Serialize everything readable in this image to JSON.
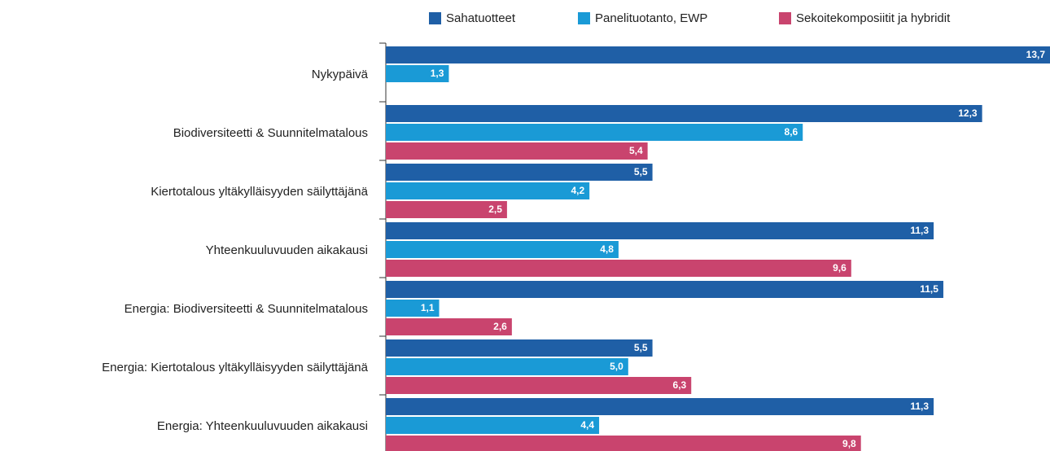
{
  "chart_data": {
    "type": "bar",
    "orientation": "horizontal",
    "categories": [
      "Nykypäivä",
      "Biodiversiteetti & Suunnitelmatalous",
      "Kiertotalous yltäkylläisyyden säilyttäjänä",
      "Yhteenkuuluvuuden aikakausi",
      "Energia: Biodiversiteetti & Suunnitelmatalous",
      "Energia: Kiertotalous yltäkylläisyyden säilyttäjänä",
      "Energia: Yhteenkuuluvuuden aikakausi"
    ],
    "series": [
      {
        "name": "Sahatuotteet",
        "color": "#1f5fa6",
        "values": [
          13.7,
          12.3,
          5.5,
          11.3,
          11.5,
          5.5,
          11.3
        ],
        "value_labels": [
          "13,7",
          "12,3",
          "5,5",
          "11,3",
          "11,5",
          "5,5",
          "11,3"
        ]
      },
      {
        "name": "Panelituotanto, EWP",
        "color": "#1a9ad6",
        "values": [
          1.3,
          8.6,
          4.2,
          4.8,
          1.1,
          5.0,
          4.4
        ],
        "value_labels": [
          "1,3",
          "8,6",
          "4,2",
          "4,8",
          "1,1",
          "5,0",
          "4,4"
        ]
      },
      {
        "name": "Sekoitekomposiitit ja hybridit",
        "color": "#c9446e",
        "values": [
          null,
          5.4,
          2.5,
          9.6,
          2.6,
          6.3,
          9.8
        ],
        "value_labels": [
          null,
          "5,4",
          "2,5",
          "9,6",
          "2,6",
          "6,3",
          "9,8"
        ]
      }
    ],
    "legend": "top"
  }
}
